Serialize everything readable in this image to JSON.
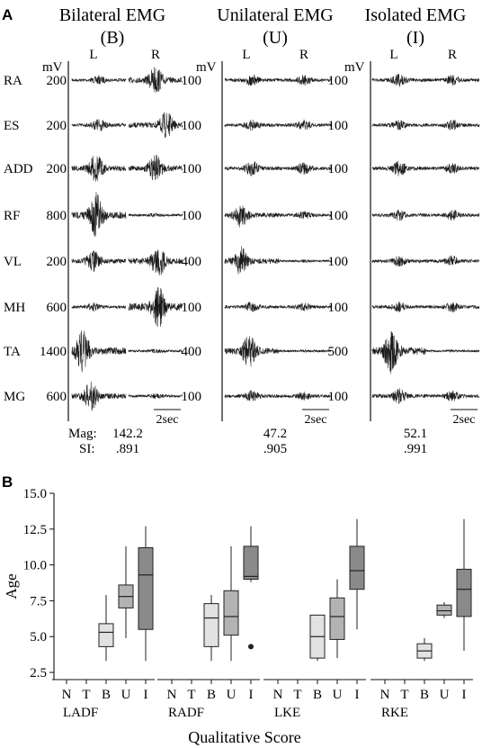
{
  "chart_data": [
    {
      "type": "emg-traces",
      "panel_label": "A",
      "unit_label": "mV",
      "side_labels": [
        "L",
        "R"
      ],
      "muscles": [
        "RA",
        "ES",
        "ADD",
        "RF",
        "VL",
        "MH",
        "TA",
        "MG"
      ],
      "scale_bar_label": "2sec",
      "summary_labels": {
        "mag": "Mag:",
        "si": "SI:"
      },
      "groups": [
        {
          "title": "Bilateral EMG",
          "code": "(B)",
          "scales": [
            "200",
            "200",
            "200",
            "800",
            "200",
            "600",
            "1400",
            "600"
          ],
          "mag": "142.2",
          "si": ".891",
          "activity_L": [
            0.15,
            0.25,
            0.6,
            0.95,
            0.45,
            0.15,
            0.9,
            0.6
          ],
          "activity_R": [
            0.6,
            0.55,
            0.55,
            0.05,
            0.7,
            0.9,
            0.04,
            0.08
          ]
        },
        {
          "title": "Unilateral EMG",
          "code": "(U)",
          "scales": [
            "100",
            "100",
            "100",
            "100",
            "400",
            "100",
            "400",
            "100"
          ],
          "mag": "47.2",
          "si": ".905",
          "activity_L": [
            0.22,
            0.2,
            0.3,
            0.5,
            0.6,
            0.2,
            0.7,
            0.22
          ],
          "activity_R": [
            0.2,
            0.2,
            0.25,
            0.15,
            0.02,
            0.15,
            0.02,
            0.15
          ]
        },
        {
          "title": "Isolated EMG",
          "code": "(I)",
          "scales": [
            "100",
            "100",
            "100",
            "100",
            "100",
            "100",
            "500",
            "100"
          ],
          "mag": "52.1",
          "si": ".991",
          "activity_L": [
            0.25,
            0.2,
            0.3,
            0.2,
            0.2,
            0.2,
            0.95,
            0.3
          ],
          "activity_R": [
            0.2,
            0.2,
            0.2,
            0.2,
            0.2,
            0.2,
            0.02,
            0.2
          ]
        }
      ]
    },
    {
      "type": "box",
      "panel_label": "B",
      "ylabel": "Age",
      "xlabel": "Qualitative Score",
      "ylim": [
        2,
        15
      ],
      "yticks": [
        "2.5",
        "5.0",
        "7.5",
        "10.0",
        "12.5",
        "15.0"
      ],
      "yvalues": [
        2.5,
        5.0,
        7.5,
        10.0,
        12.5,
        15.0
      ],
      "scores": [
        "N",
        "T",
        "B",
        "U",
        "I"
      ],
      "shade": {
        "B": "#e2e2e2",
        "U": "#b3b3b3",
        "I": "#8a8a8a"
      },
      "groups": [
        {
          "name": "LADF",
          "boxes": [
            {
              "score": "B",
              "min": 3.3,
              "q1": 4.3,
              "median": 5.3,
              "q3": 5.9,
              "max": 7.9
            },
            {
              "score": "U",
              "min": 4.9,
              "q1": 7.0,
              "median": 7.8,
              "q3": 8.6,
              "max": 11.3
            },
            {
              "score": "I",
              "min": 3.3,
              "q1": 5.5,
              "median": 9.3,
              "q3": 11.2,
              "max": 12.7
            }
          ]
        },
        {
          "name": "RADF",
          "boxes": [
            {
              "score": "B",
              "min": 3.3,
              "q1": 4.3,
              "median": 6.3,
              "q3": 7.3,
              "max": 7.9
            },
            {
              "score": "U",
              "min": 3.3,
              "q1": 5.1,
              "median": 6.4,
              "q3": 8.2,
              "max": 11.3
            },
            {
              "score": "I",
              "min": 8.8,
              "q1": 9.0,
              "median": 9.2,
              "q3": 11.3,
              "max": 12.7,
              "outliers": [
                4.3
              ]
            }
          ]
        },
        {
          "name": "LKE",
          "boxes": [
            {
              "score": "B",
              "min": 3.3,
              "q1": 3.5,
              "median": 5.0,
              "q3": 6.5,
              "max": 6.5
            },
            {
              "score": "U",
              "min": 3.5,
              "q1": 4.8,
              "median": 6.4,
              "q3": 7.7,
              "max": 9.0
            },
            {
              "score": "I",
              "min": 5.5,
              "q1": 8.3,
              "median": 9.6,
              "q3": 11.3,
              "max": 13.2
            }
          ]
        },
        {
          "name": "RKE",
          "boxes": [
            {
              "score": "B",
              "min": 3.3,
              "q1": 3.5,
              "median": 4.0,
              "q3": 4.5,
              "max": 4.9
            },
            {
              "score": "U",
              "min": 6.3,
              "q1": 6.5,
              "median": 6.8,
              "q3": 7.2,
              "max": 7.4
            },
            {
              "score": "I",
              "min": 4.0,
              "q1": 6.4,
              "median": 8.3,
              "q3": 9.7,
              "max": 13.2
            }
          ]
        }
      ]
    }
  ]
}
